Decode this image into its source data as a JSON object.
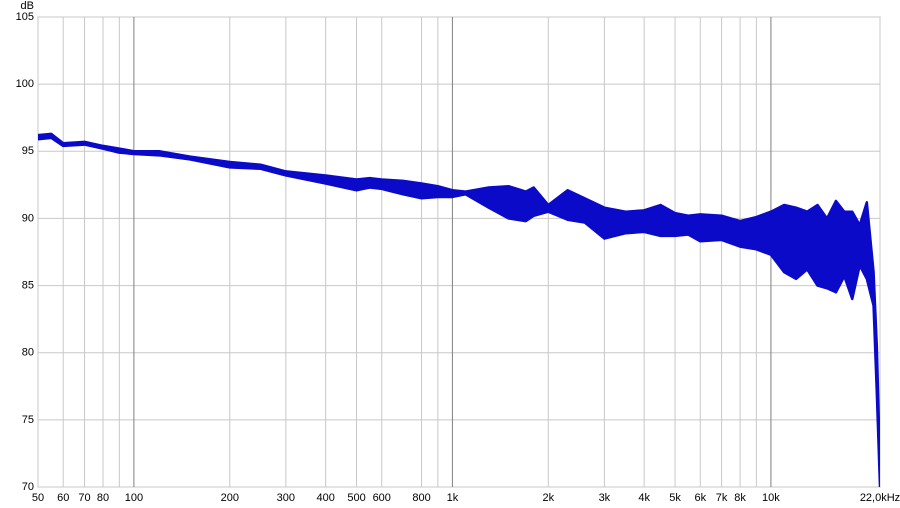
{
  "chart_data": {
    "type": "band",
    "y_label": "dB",
    "color": "#0a0ac8",
    "xscale": "log",
    "grid": true,
    "x": [
      50,
      55,
      60,
      70,
      80,
      90,
      100,
      120,
      150,
      200,
      250,
      300,
      400,
      500,
      550,
      600,
      700,
      800,
      900,
      1000,
      1100,
      1300,
      1500,
      1700,
      1800,
      2000,
      2300,
      2600,
      3000,
      3500,
      4000,
      4500,
      5000,
      5500,
      6000,
      7000,
      8000,
      9000,
      10000,
      11000,
      12000,
      13000,
      14000,
      15000,
      16000,
      17000,
      18000,
      19000,
      20000,
      21000,
      21500,
      22000
    ],
    "high": [
      96.2,
      96.3,
      95.6,
      95.7,
      95.4,
      95.2,
      95.0,
      95.0,
      94.6,
      94.2,
      94.0,
      93.5,
      93.2,
      92.9,
      93.0,
      92.9,
      92.8,
      92.6,
      92.4,
      92.1,
      92.0,
      92.3,
      92.4,
      92.0,
      92.3,
      91.0,
      92.1,
      91.5,
      90.8,
      90.5,
      90.6,
      91.0,
      90.4,
      90.2,
      90.3,
      90.2,
      89.8,
      90.1,
      90.5,
      91.0,
      90.8,
      90.5,
      91.0,
      90.0,
      91.3,
      90.5,
      90.5,
      89.5,
      91.2,
      86.0,
      80.5,
      71.5
    ],
    "low": [
      95.9,
      96.0,
      95.4,
      95.5,
      95.2,
      94.9,
      94.8,
      94.7,
      94.4,
      93.8,
      93.7,
      93.2,
      92.6,
      92.1,
      92.3,
      92.2,
      91.8,
      91.5,
      91.6,
      91.6,
      91.8,
      90.8,
      90.0,
      89.8,
      90.2,
      90.5,
      89.9,
      89.7,
      88.5,
      88.9,
      89.0,
      88.7,
      88.7,
      88.8,
      88.3,
      88.4,
      87.9,
      87.7,
      87.3,
      86.0,
      85.5,
      86.2,
      85.0,
      84.8,
      84.5,
      85.7,
      84.0,
      86.5,
      85.5,
      83.5,
      77.0,
      70.0
    ],
    "xlim": [
      50,
      22000
    ],
    "ylim": [
      70,
      105
    ],
    "xticks": [
      50,
      60,
      70,
      80,
      {
        "value": 90,
        "label": null
      },
      100,
      200,
      300,
      400,
      500,
      600,
      800,
      {
        "value": 900,
        "label": null
      },
      {
        "value": 1000,
        "label": "1k"
      },
      {
        "value": 2000,
        "label": "2k"
      },
      {
        "value": 3000,
        "label": "3k"
      },
      {
        "value": 4000,
        "label": "4k"
      },
      {
        "value": 5000,
        "label": "5k"
      },
      {
        "value": 6000,
        "label": "6k"
      },
      {
        "value": 7000,
        "label": "7k"
      },
      {
        "value": 8000,
        "label": "8k"
      },
      {
        "value": 9000,
        "label": null
      },
      {
        "value": 10000,
        "label": "10k"
      },
      {
        "value": 22000,
        "label": "22,0kHz"
      }
    ],
    "yticks": [
      70,
      75,
      80,
      85,
      90,
      95,
      100,
      105
    ]
  }
}
